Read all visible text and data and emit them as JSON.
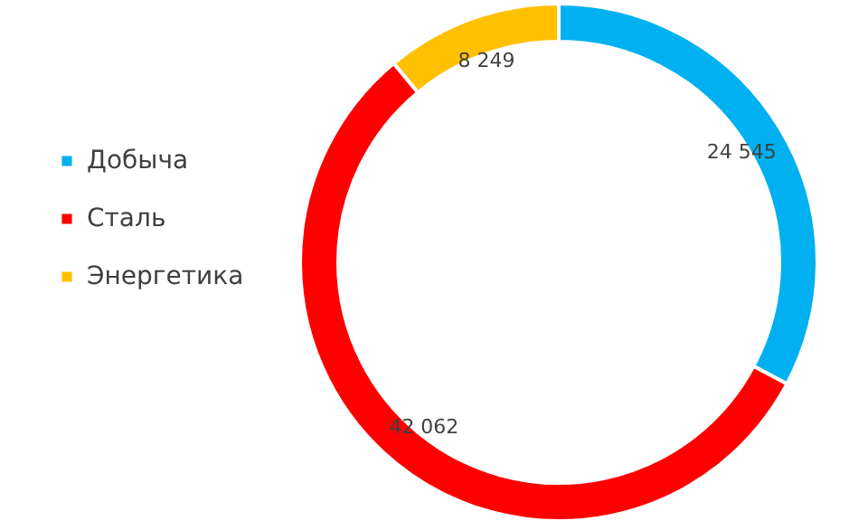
{
  "chart_data": {
    "type": "donut",
    "categories": [
      "Добыча",
      "Сталь",
      "Энергетика"
    ],
    "values": [
      24545,
      42062,
      8249
    ],
    "value_labels": [
      "24 545",
      "42 062",
      "8 249"
    ],
    "colors": [
      "#00b0f0",
      "#ff0000",
      "#ffc000"
    ],
    "legend": "left"
  }
}
